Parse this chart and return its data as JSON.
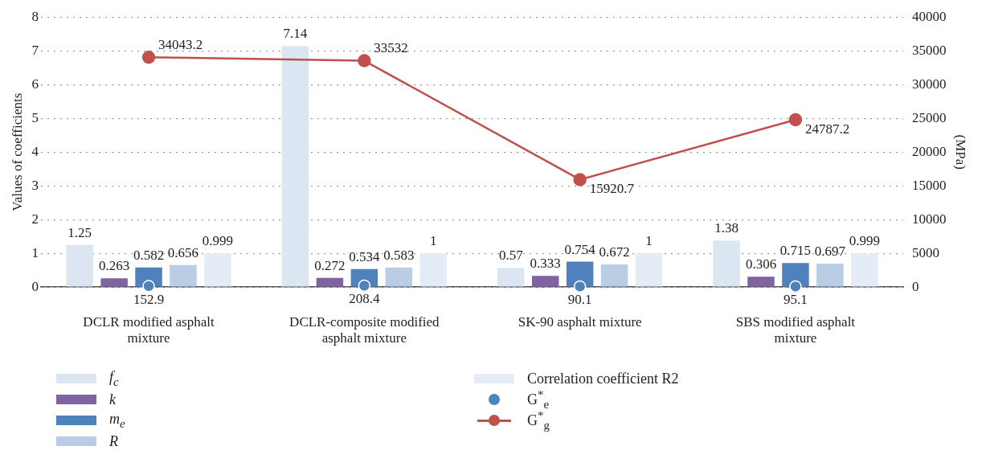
{
  "chart_data": {
    "type": "bar",
    "ylabel": "Values of coefficients",
    "y2label": "(MPa)",
    "categories": [
      "DCLR modified asphalt mixture",
      "DCLR-composite modified asphalt mixture",
      "SK-90 asphalt mixture",
      "SBS modified asphalt mixture"
    ],
    "series": [
      {
        "name": "f$_{c}$",
        "color": "#dce6f2",
        "values": [
          1.25,
          7.14,
          0.57,
          1.38
        ]
      },
      {
        "name": "k",
        "color": "#8064a2",
        "values": [
          0.263,
          0.272,
          0.333,
          0.306
        ]
      },
      {
        "name": "m$_{e}$",
        "color": "#4f81bd",
        "values": [
          0.582,
          0.534,
          0.754,
          0.715
        ]
      },
      {
        "name": "R",
        "color": "#b9cde5",
        "values": [
          0.656,
          0.583,
          0.672,
          0.697
        ]
      },
      {
        "name": "Correlation coefficient R2",
        "color": "#e4ecf7",
        "values": [
          0.999,
          1,
          1,
          0.999
        ]
      },
      {
        "name": "G$^{*}$$_{e}$",
        "type": "scatter",
        "axis": "y2",
        "marker": "circle",
        "color": "#4f81bd",
        "values": [
          152.9,
          208.4,
          90.1,
          95.1
        ]
      },
      {
        "name": "G$^{*}$$_{g}$",
        "type": "line",
        "axis": "y2",
        "marker": "circle",
        "line_style": "solid",
        "color": "#c0504d",
        "values": [
          34043.2,
          33532,
          15920.7,
          24787.2
        ]
      }
    ],
    "ylim": [
      0,
      8
    ],
    "yticks": [
      0,
      1,
      2,
      3,
      4,
      5,
      6,
      7,
      8
    ],
    "y2lim": [
      0,
      40000
    ],
    "y2ticks": [
      0,
      5000,
      10000,
      15000,
      20000,
      25000,
      30000,
      35000,
      40000
    ],
    "grid": "y",
    "legend": "bottom",
    "data_labels": true
  }
}
